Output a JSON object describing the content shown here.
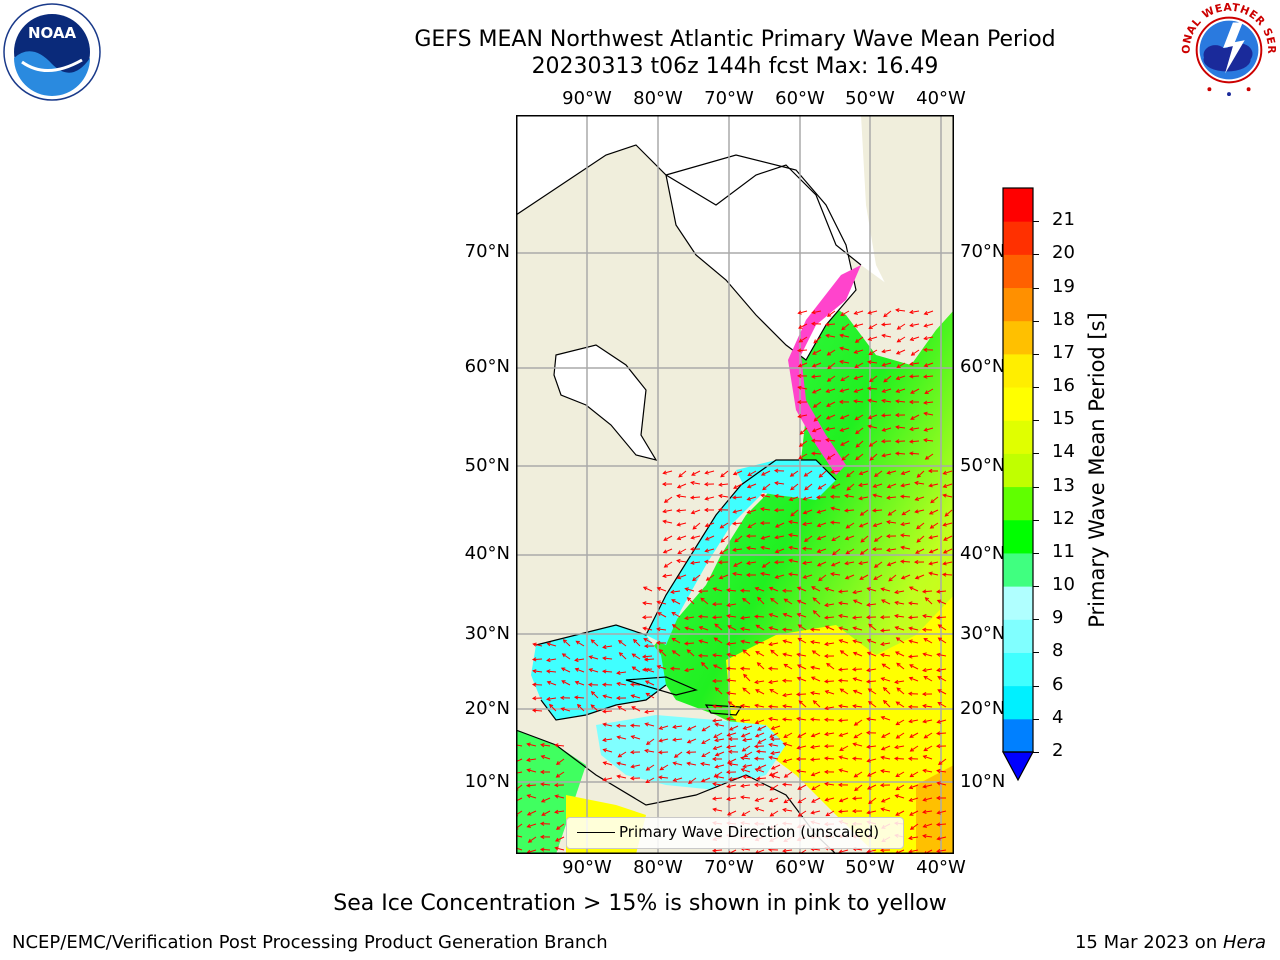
{
  "header": {
    "title": "GEFS MEAN Northwest Atlantic Primary Wave Mean Period",
    "subtitle": "20230313 t06z 144h fcst   Max: 16.49"
  },
  "map": {
    "lon_labels": [
      "90°W",
      "80°W",
      "70°W",
      "60°W",
      "50°W",
      "40°W"
    ],
    "lat_labels": [
      "70°N",
      "60°N",
      "50°N",
      "40°N",
      "30°N",
      "20°N",
      "10°N"
    ],
    "legend_label": "Primary Wave Direction (unscaled)",
    "colors": {
      "land": "#f0eedc",
      "arrow": "#ff0000",
      "grid": "#aaaaaa",
      "ice": "#ff44cc"
    }
  },
  "colorbar": {
    "label": "Primary Wave Mean Period [s]",
    "ticks": [
      "2",
      "4",
      "6",
      "8",
      "9",
      "10",
      "11",
      "12",
      "13",
      "14",
      "15",
      "16",
      "17",
      "18",
      "19",
      "20",
      "21"
    ],
    "colors": [
      "#0080ff",
      "#00f0ff",
      "#40ffff",
      "#80ffff",
      "#b0ffff",
      "#40ff80",
      "#00ff00",
      "#60ff00",
      "#c0ff00",
      "#e0ff00",
      "#ffff00",
      "#ffee00",
      "#ffc000",
      "#ff9000",
      "#ff6000",
      "#ff3000",
      "#ff0000"
    ],
    "extend_color": "#0000ff"
  },
  "note": "Sea Ice Concentration > 15% is shown in pink to yellow",
  "footer": {
    "left": "NCEP/EMC/Verification Post Processing Product Generation Branch",
    "date": "15 Mar 2023 on ",
    "host": "Hera"
  },
  "logos": {
    "noaa_text": "NOAA",
    "nws_text": "NATIONAL WEATHER SERVICE"
  }
}
